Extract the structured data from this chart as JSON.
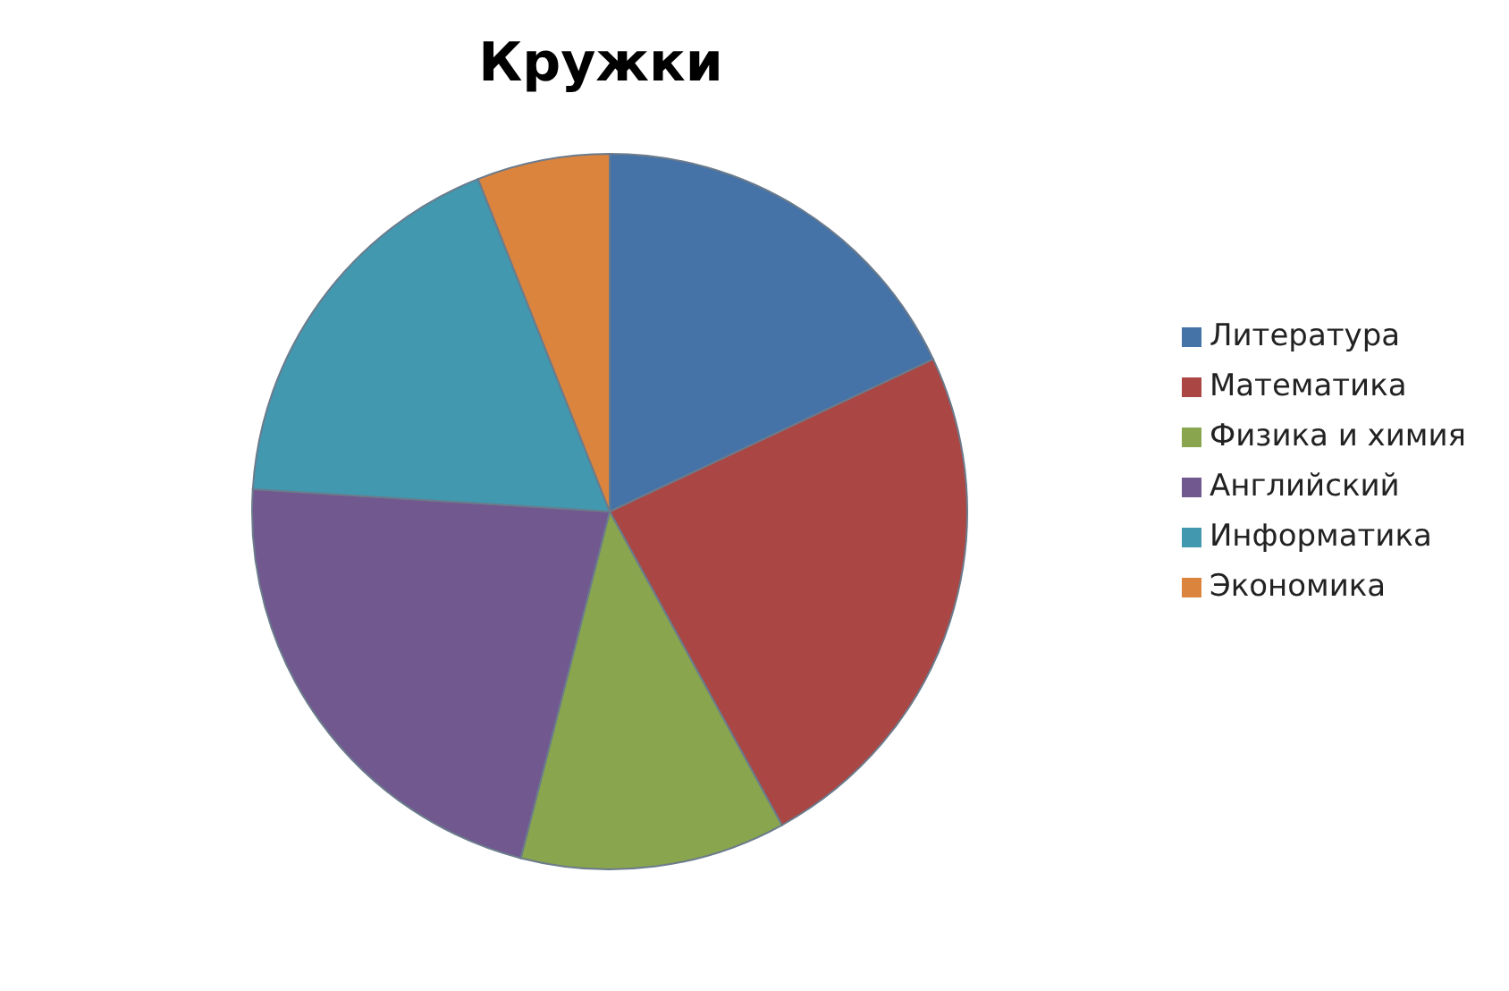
{
  "chart_data": {
    "type": "pie",
    "title": "Кружки",
    "categories": [
      "Литература",
      "Математика",
      "Физика и химия",
      "Английский",
      "Информатика",
      "Экономика"
    ],
    "values": [
      18,
      24,
      12,
      22,
      18,
      6
    ],
    "colors": [
      "#4572a7",
      "#aa4643",
      "#89a54e",
      "#71588f",
      "#4198af",
      "#db843d"
    ],
    "legend": "right"
  }
}
